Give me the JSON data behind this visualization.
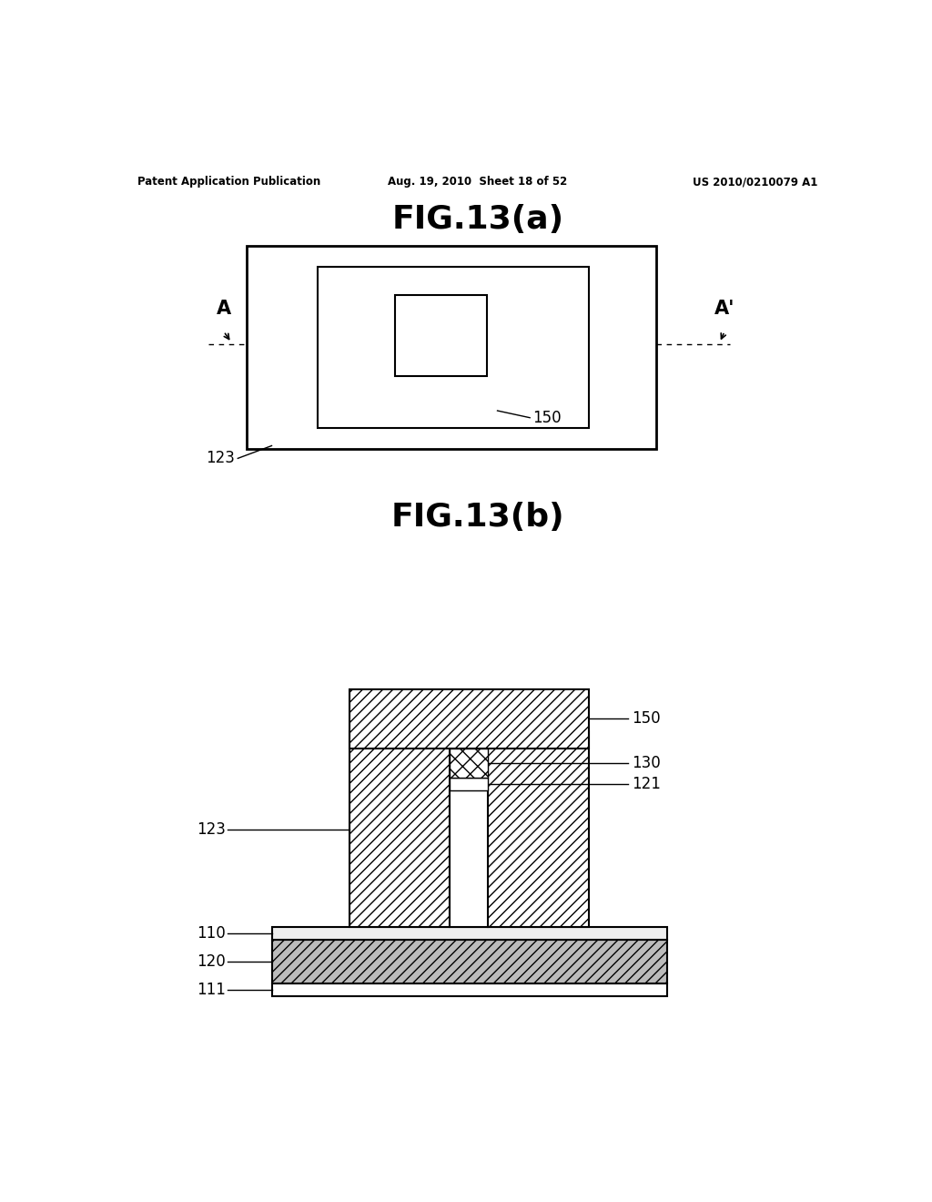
{
  "header_left": "Patent Application Publication",
  "header_center": "Aug. 19, 2010  Sheet 18 of 52",
  "header_right": "US 2010/0210079 A1",
  "fig_a_title": "FIG.13(a)",
  "fig_b_title": "FIG.13(b)",
  "bg_color": "#ffffff",
  "line_color": "#000000"
}
